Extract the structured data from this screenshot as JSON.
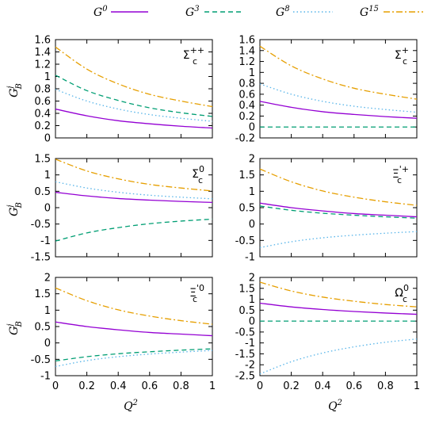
{
  "legend": [
    {
      "name": "G",
      "sup": "0",
      "color": "#9400d3",
      "dash": "solid"
    },
    {
      "name": "G",
      "sup": "3",
      "color": "#009e73",
      "dash": "dashed"
    },
    {
      "name": "G",
      "sup": "8",
      "color": "#56b4e9",
      "dash": "dotted"
    },
    {
      "name": "G",
      "sup": "15",
      "color": "#e69f00",
      "dash": "dashdot"
    }
  ],
  "axis_labels": {
    "x": {
      "base": "Q",
      "sup": "2"
    },
    "y": {
      "base": "G",
      "sup": "j",
      "sub": "B"
    }
  },
  "chart_data": [
    {
      "type": "line",
      "label": "Σc++",
      "label_base": "Σ",
      "label_sub": "c",
      "label_sup": "++",
      "xlim": [
        0,
        1
      ],
      "ylim": [
        0,
        1.6
      ],
      "yticks": [
        "0",
        "0.2",
        "0.4",
        "0.6",
        "0.8",
        "1",
        "1.2",
        "1.4",
        "1.6"
      ],
      "xticks": [
        "0",
        "0.2",
        "0.4",
        "0.6",
        "0.8",
        "1"
      ],
      "x": [
        0,
        0.2,
        0.4,
        0.6,
        0.8,
        1.0
      ],
      "series": [
        {
          "values": [
            0.47,
            0.36,
            0.28,
            0.23,
            0.19,
            0.16
          ]
        },
        {
          "values": [
            1.02,
            0.77,
            0.61,
            0.49,
            0.41,
            0.35
          ]
        },
        {
          "values": [
            0.79,
            0.6,
            0.47,
            0.38,
            0.32,
            0.27
          ]
        },
        {
          "values": [
            1.48,
            1.12,
            0.88,
            0.71,
            0.6,
            0.51
          ]
        }
      ]
    },
    {
      "type": "line",
      "label": "Σc+",
      "label_base": "Σ",
      "label_sub": "c",
      "label_sup": "+",
      "xlim": [
        0,
        1
      ],
      "ylim": [
        -0.2,
        1.6
      ],
      "yticks": [
        "-0.2",
        "0",
        "0.2",
        "0.4",
        "0.6",
        "0.8",
        "1",
        "1.2",
        "1.4",
        "1.6"
      ],
      "xticks": [
        "0",
        "0.2",
        "0.4",
        "0.6",
        "0.8",
        "1"
      ],
      "x": [
        0,
        0.2,
        0.4,
        0.6,
        0.8,
        1.0
      ],
      "series": [
        {
          "values": [
            0.47,
            0.36,
            0.28,
            0.23,
            0.19,
            0.16
          ]
        },
        {
          "values": [
            0,
            0,
            0,
            0,
            0,
            0
          ]
        },
        {
          "values": [
            0.79,
            0.6,
            0.47,
            0.38,
            0.32,
            0.27
          ]
        },
        {
          "values": [
            1.48,
            1.12,
            0.88,
            0.71,
            0.6,
            0.51
          ]
        }
      ]
    },
    {
      "type": "line",
      "label": "Σc0",
      "label_base": "Σ",
      "label_sub": "c",
      "label_sup": "0",
      "xlim": [
        0,
        1
      ],
      "ylim": [
        -1.5,
        1.5
      ],
      "yticks": [
        "-1.5",
        "-1",
        "-0.5",
        "0",
        "0.5",
        "1",
        "1.5"
      ],
      "xticks": [
        "0",
        "0.2",
        "0.4",
        "0.6",
        "0.8",
        "1"
      ],
      "x": [
        0,
        0.2,
        0.4,
        0.6,
        0.8,
        1.0
      ],
      "series": [
        {
          "values": [
            0.47,
            0.36,
            0.28,
            0.23,
            0.19,
            0.16
          ]
        },
        {
          "values": [
            -1.02,
            -0.77,
            -0.61,
            -0.49,
            -0.41,
            -0.35
          ]
        },
        {
          "values": [
            0.79,
            0.6,
            0.47,
            0.38,
            0.32,
            0.27
          ]
        },
        {
          "values": [
            1.48,
            1.12,
            0.88,
            0.71,
            0.6,
            0.51
          ]
        }
      ]
    },
    {
      "type": "line",
      "label": "Ξ'c+",
      "label_base": "Ξ",
      "label_sub": "c",
      "label_sup": "'+",
      "xlim": [
        0,
        1
      ],
      "ylim": [
        -1,
        2
      ],
      "yticks": [
        "-1",
        "-0.5",
        "0",
        "0.5",
        "1",
        "1.5",
        "2"
      ],
      "xticks": [
        "0",
        "0.2",
        "0.4",
        "0.6",
        "0.8",
        "1"
      ],
      "x": [
        0,
        0.2,
        0.4,
        0.6,
        0.8,
        1.0
      ],
      "series": [
        {
          "values": [
            0.64,
            0.5,
            0.4,
            0.32,
            0.27,
            0.22
          ]
        },
        {
          "values": [
            0.55,
            0.42,
            0.33,
            0.27,
            0.22,
            0.18
          ]
        },
        {
          "values": [
            -0.72,
            -0.54,
            -0.42,
            -0.34,
            -0.28,
            -0.23
          ]
        },
        {
          "values": [
            1.68,
            1.29,
            1.01,
            0.82,
            0.68,
            0.57
          ]
        }
      ]
    },
    {
      "type": "line",
      "label": "Ξ'c0",
      "label_base": "Ξ",
      "label_sub": "c",
      "label_sup": "'0",
      "xlim": [
        0,
        1
      ],
      "ylim": [
        -1,
        2
      ],
      "yticks": [
        "-1",
        "-0.5",
        "0",
        "0.5",
        "1",
        "1.5",
        "2"
      ],
      "xticks": [
        "0",
        "0.2",
        "0.4",
        "0.6",
        "0.8",
        "1"
      ],
      "x": [
        0,
        0.2,
        0.4,
        0.6,
        0.8,
        1.0
      ],
      "series": [
        {
          "values": [
            0.64,
            0.5,
            0.4,
            0.32,
            0.27,
            0.22
          ]
        },
        {
          "values": [
            -0.55,
            -0.42,
            -0.33,
            -0.27,
            -0.22,
            -0.18
          ]
        },
        {
          "values": [
            -0.72,
            -0.54,
            -0.42,
            -0.34,
            -0.28,
            -0.23
          ]
        },
        {
          "values": [
            1.68,
            1.29,
            1.01,
            0.82,
            0.68,
            0.57
          ]
        }
      ]
    },
    {
      "type": "line",
      "label": "Ωc0",
      "label_base": "Ω",
      "label_sub": "c",
      "label_sup": "0",
      "xlim": [
        0,
        1
      ],
      "ylim": [
        -2.5,
        2
      ],
      "yticks": [
        "-2.5",
        "-2",
        "-1.5",
        "-1",
        "-0.5",
        "0",
        "0.5",
        "1",
        "1.5",
        "2"
      ],
      "xticks": [
        "0",
        "0.2",
        "0.4",
        "0.6",
        "0.8",
        "1"
      ],
      "x": [
        0,
        0.2,
        0.4,
        0.6,
        0.8,
        1.0
      ],
      "series": [
        {
          "values": [
            0.82,
            0.65,
            0.53,
            0.44,
            0.37,
            0.31
          ]
        },
        {
          "values": [
            0,
            0,
            0,
            0,
            0,
            0
          ]
        },
        {
          "values": [
            -2.42,
            -1.86,
            -1.46,
            -1.18,
            -0.97,
            -0.82
          ]
        },
        {
          "values": [
            1.78,
            1.38,
            1.1,
            0.91,
            0.76,
            0.65
          ]
        }
      ]
    }
  ]
}
